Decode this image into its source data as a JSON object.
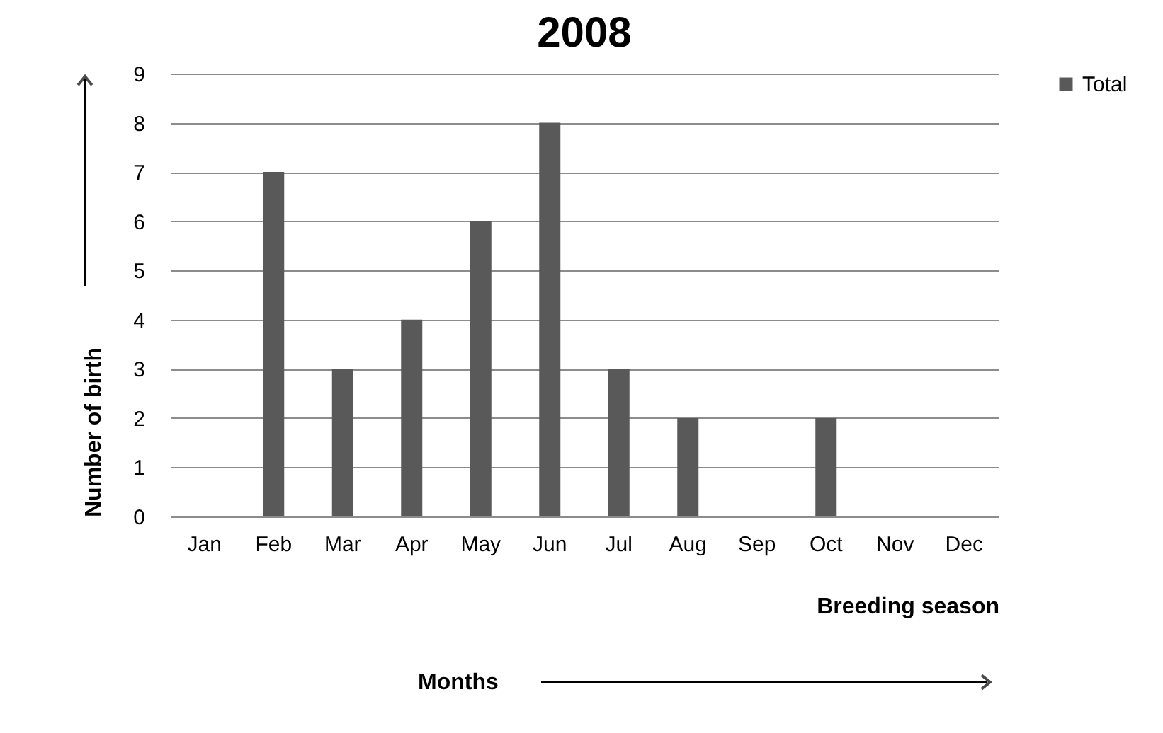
{
  "chart_data": {
    "type": "bar",
    "title": "2008",
    "xlabel": "Breeding season",
    "ylabel": "Number of birth",
    "categories": [
      "Jan",
      "Feb",
      "Mar",
      "Apr",
      "May",
      "Jun",
      "Jul",
      "Aug",
      "Sep",
      "Oct",
      "Nov",
      "Dec"
    ],
    "series": [
      {
        "name": "Total",
        "color": "#595959",
        "values": [
          0,
          7,
          3,
          4,
          6,
          8,
          3,
          2,
          0,
          2,
          0,
          0
        ]
      }
    ],
    "ylim": [
      0,
      9
    ],
    "yticks": [
      0,
      1,
      2,
      3,
      4,
      5,
      6,
      7,
      8,
      9
    ],
    "grid": "y",
    "legend": "right",
    "annotations": [
      "Months"
    ]
  }
}
